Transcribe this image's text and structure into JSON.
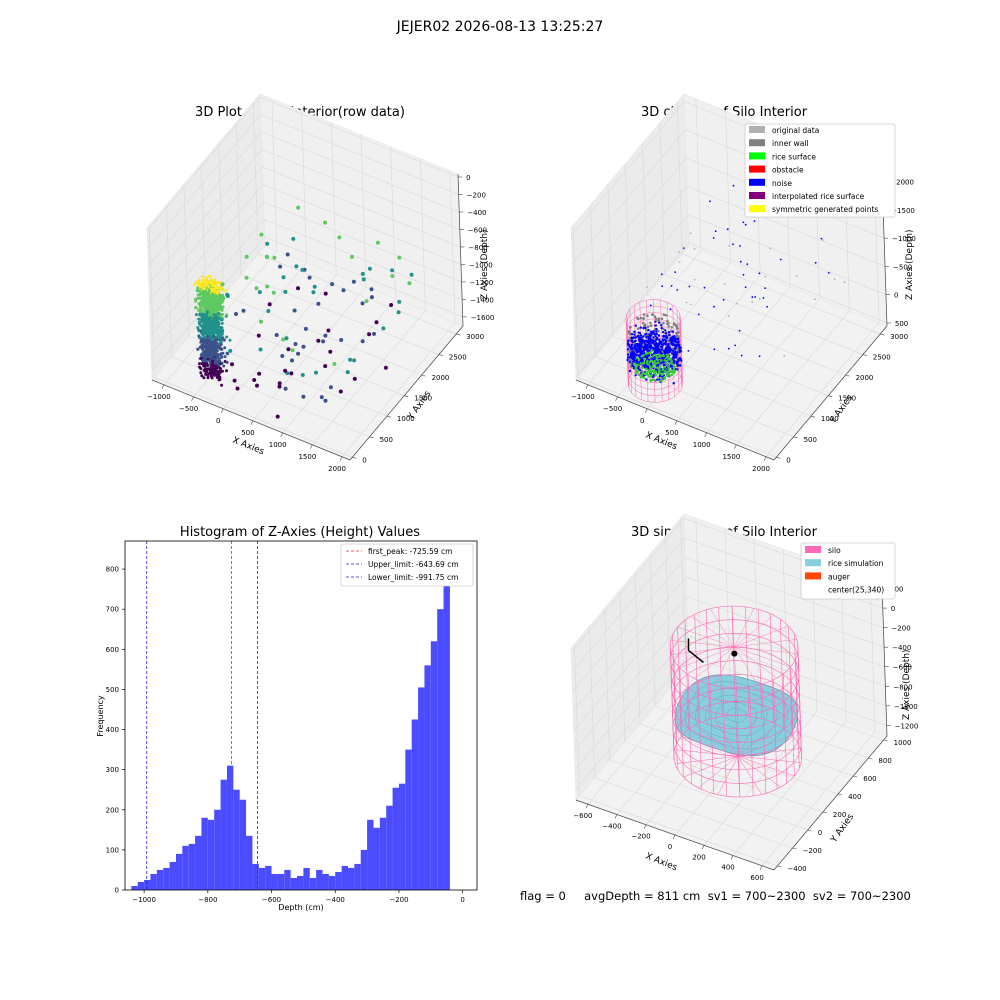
{
  "figure_title": "JEJER02 2026-08-13 13:25:27",
  "footer_text": "flag = 0     avgDepth = 811 cm  sv1 = 700~2300  sv2 = 700~2300",
  "colors": {
    "raw_yellow": "#fde725",
    "raw_green": "#5ec962",
    "raw_teal": "#21918c",
    "raw_blue": "#3b528b",
    "raw_purple": "#440154",
    "hist_bar": "#4b4bff",
    "peak_line": "#e03030",
    "limit_line": "#2020d0",
    "silo": "#ff69b4",
    "rice": "#87cedf",
    "auger": "#ff4500"
  },
  "chart_data": [
    {
      "type": "scatter",
      "projection": "3d",
      "title": "3D Plot of Silo Interior(row data)",
      "xlabel": "X Axies",
      "ylabel": "Y Axies",
      "zlabel": "Z Axies (Depth)",
      "x_ticks": [
        "−1000",
        "−500",
        "0",
        "500",
        "1000",
        "1500",
        "2000"
      ],
      "y_ticks": [
        "0",
        "500",
        "1000",
        "1500",
        "2000",
        "2500",
        "3000"
      ],
      "z_ticks": [
        "0",
        "−200",
        "−400",
        "−600",
        "−800",
        "−1000",
        "−1200",
        "−1400",
        "−1600"
      ],
      "xlim": [
        -1150,
        2050
      ],
      "ylim": [
        0,
        3100
      ],
      "zlim": [
        -1700,
        50
      ],
      "colormap": "viridis"
    },
    {
      "type": "scatter",
      "projection": "3d",
      "title": "3D classify of Silo Interior",
      "xlabel": "X Axies",
      "ylabel": "Y Axies",
      "zlabel": "Z Axies (Depth)",
      "x_ticks": [
        "−1000",
        "−500",
        "0",
        "500",
        "1000",
        "1500",
        "2000"
      ],
      "y_ticks": [
        "0",
        "500",
        "1000",
        "1500",
        "2000",
        "2500",
        "3000"
      ],
      "z_ticks": [
        "500",
        "0",
        "−500",
        "−1000",
        "−1500",
        "−2000"
      ],
      "xlim": [
        -1150,
        2050
      ],
      "ylim": [
        0,
        3100
      ],
      "zlim": [
        -2150,
        550
      ],
      "legend_position": "top-right",
      "legend": [
        {
          "label": "original data",
          "color": "#b0b0b0"
        },
        {
          "label": "inner wall",
          "color": "#808080"
        },
        {
          "label": "rice surface",
          "color": "#00ff00"
        },
        {
          "label": "obstacle",
          "color": "#ff0000"
        },
        {
          "label": "noise",
          "color": "#0000ff"
        },
        {
          "label": "interpolated rice surface",
          "color": "#800080"
        },
        {
          "label": "symmetric generated points",
          "color": "#ffff00"
        }
      ]
    },
    {
      "type": "bar",
      "title": "Histogram of Z-Axies (Height) Values",
      "xlabel": "Depth (cm)",
      "ylabel": "Frequency",
      "xlim": [
        -1060,
        45
      ],
      "ylim": [
        0,
        870
      ],
      "x_ticks": [
        "−1000",
        "−800",
        "−600",
        "−400",
        "−200",
        "0"
      ],
      "y_ticks": [
        "0",
        "100",
        "200",
        "300",
        "400",
        "500",
        "600",
        "700",
        "800"
      ],
      "bin_start": -1040,
      "bin_width": 20,
      "values": [
        10,
        20,
        25,
        40,
        50,
        55,
        70,
        90,
        110,
        115,
        135,
        180,
        175,
        200,
        275,
        310,
        250,
        225,
        135,
        65,
        55,
        60,
        40,
        40,
        50,
        30,
        35,
        55,
        30,
        50,
        40,
        35,
        45,
        60,
        55,
        65,
        100,
        175,
        155,
        180,
        210,
        255,
        265,
        350,
        425,
        505,
        560,
        620,
        700,
        820
      ],
      "legend_position": "top-right",
      "vlines": [
        {
          "label": "first_peak: -725.59 cm",
          "x": -725.59,
          "color": "#e03030"
        },
        {
          "label": "Upper_limit: -643.69 cm",
          "x": -643.69,
          "color": "#2020d0"
        },
        {
          "label": "Lower_limit: -991.75 cm",
          "x": -991.75,
          "color": "#2020d0"
        }
      ]
    },
    {
      "type": "surface",
      "projection": "3d",
      "title": "3D simulation of Silo Interior",
      "xlabel": "X Axies",
      "ylabel": "Y Axies",
      "zlabel": "Z Axies (Depth)",
      "x_ticks": [
        "−600",
        "−400",
        "−200",
        "0",
        "200",
        "400",
        "600"
      ],
      "y_ticks": [
        "−400",
        "−200",
        "0",
        "200",
        "400",
        "600",
        "800",
        "1000"
      ],
      "z_ticks": [
        "200",
        "0",
        "−200",
        "−400",
        "−600",
        "−800",
        "−1000",
        "−1200"
      ],
      "xlim": [
        -700,
        700
      ],
      "ylim": [
        -450,
        1050
      ],
      "zlim": [
        -1350,
        250
      ],
      "legend_position": "top-right",
      "legend": [
        {
          "label": "silo",
          "color": "#ff69b4"
        },
        {
          "label": "rice simulation",
          "color": "#87cedf"
        },
        {
          "label": "auger",
          "color": "#ff4500"
        },
        {
          "label": "center(25,340)",
          "color": ""
        }
      ]
    }
  ]
}
